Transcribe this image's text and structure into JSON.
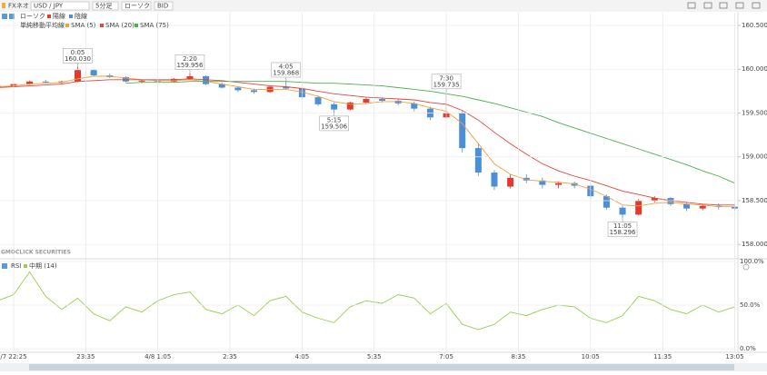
{
  "toolbar": {
    "app": "FXネオ",
    "pair": "USD / JPY",
    "interval": "5分足",
    "chart_kind": "ローソク",
    "price_side": "BID"
  },
  "brand": "GMOCLICK SECURITIES",
  "chart_data": [
    {
      "type": "candlestick",
      "candle_legend": {
        "title": "ローソク",
        "up": {
          "name": "陽線",
          "color": "#e23a2e"
        },
        "down": {
          "name": "陰線",
          "color": "#4a8fd8"
        }
      },
      "sma_title": "単純移動平均線",
      "xlim": [
        0.15,
        46.2
      ],
      "xticks": [
        {
          "value": 1,
          "label": "/7 22:25"
        },
        {
          "value": 5.5,
          "label": "23:35"
        },
        {
          "value": 10,
          "label": "4/8 1:05"
        },
        {
          "value": 14.5,
          "label": "2:35"
        },
        {
          "value": 19,
          "label": "4:05"
        },
        {
          "value": 23.5,
          "label": "5:35"
        },
        {
          "value": 28,
          "label": "7:05"
        },
        {
          "value": 32.5,
          "label": "8:35"
        },
        {
          "value": 37,
          "label": "10:05"
        },
        {
          "value": 41.5,
          "label": "11:35"
        },
        {
          "value": 46,
          "label": "13:05"
        }
      ],
      "ylim": [
        157.94,
        160.645
      ],
      "yticks": [
        {
          "value": 158,
          "label": "158.000"
        },
        {
          "value": 158.5,
          "label": "158.500"
        },
        {
          "value": 159,
          "label": "159.000"
        },
        {
          "value": 159.5,
          "label": "159.500"
        },
        {
          "value": 160,
          "label": "160.000"
        },
        {
          "value": 160.5,
          "label": "160.500"
        }
      ],
      "grid": true,
      "candles": {
        "open": [
          159.79,
          159.81,
          159.83,
          159.86,
          159.85,
          159.86,
          159.99,
          159.93,
          159.91,
          159.86,
          159.87,
          159.86,
          159.89,
          159.92,
          159.83,
          159.79,
          159.76,
          159.74,
          159.8,
          159.78,
          159.68,
          159.6,
          159.54,
          159.62,
          159.66,
          159.64,
          159.61,
          159.55,
          159.45,
          159.5,
          159.1,
          158.82,
          158.66,
          158.76,
          158.73,
          158.68,
          158.7,
          158.67,
          158.55,
          158.42,
          158.34,
          158.5,
          158.53,
          158.46,
          158.41,
          158.44,
          158.43
        ],
        "high": [
          159.82,
          159.84,
          159.87,
          159.88,
          159.87,
          160.03,
          160.0,
          159.95,
          159.92,
          159.88,
          159.89,
          159.9,
          159.956,
          159.93,
          159.85,
          159.8,
          159.78,
          159.81,
          159.868,
          159.79,
          159.7,
          159.62,
          159.63,
          159.68,
          159.68,
          159.66,
          159.63,
          159.57,
          159.735,
          159.52,
          159.15,
          158.85,
          158.8,
          158.8,
          158.76,
          158.72,
          158.72,
          158.68,
          158.57,
          158.44,
          158.52,
          158.55,
          158.54,
          158.48,
          158.46,
          158.47,
          158.46
        ],
        "low": [
          159.78,
          159.8,
          159.82,
          159.84,
          159.83,
          159.85,
          159.92,
          159.9,
          159.85,
          159.84,
          159.85,
          159.85,
          159.88,
          159.82,
          159.78,
          159.74,
          159.72,
          159.73,
          159.77,
          159.66,
          159.58,
          159.506,
          159.53,
          159.6,
          159.62,
          159.59,
          159.52,
          159.42,
          159.44,
          159.05,
          158.78,
          158.62,
          158.64,
          158.7,
          158.64,
          158.64,
          158.64,
          158.52,
          158.4,
          158.296,
          158.33,
          158.48,
          158.44,
          158.38,
          158.39,
          158.4,
          158.39
        ],
        "close": [
          159.81,
          159.83,
          159.86,
          159.85,
          159.86,
          159.99,
          159.93,
          159.91,
          159.86,
          159.87,
          159.86,
          159.89,
          159.92,
          159.83,
          159.79,
          159.76,
          159.74,
          159.8,
          159.78,
          159.68,
          159.6,
          159.54,
          159.62,
          159.66,
          159.64,
          159.61,
          159.55,
          159.45,
          159.5,
          159.1,
          158.82,
          158.66,
          158.76,
          158.73,
          158.68,
          158.7,
          158.67,
          158.55,
          158.42,
          158.34,
          158.5,
          158.53,
          158.46,
          158.41,
          158.44,
          158.43,
          158.41
        ]
      },
      "series": [
        {
          "name": "SMA (5)",
          "color": "#f0a040",
          "values": [
            159.8,
            159.81,
            159.83,
            159.84,
            159.85,
            159.89,
            159.92,
            159.92,
            159.9,
            159.88,
            159.87,
            159.87,
            159.88,
            159.86,
            159.83,
            159.8,
            159.77,
            159.77,
            159.77,
            159.74,
            159.69,
            159.63,
            159.6,
            159.61,
            159.63,
            159.63,
            159.61,
            159.56,
            159.52,
            159.38,
            159.15,
            158.92,
            158.8,
            158.74,
            158.72,
            158.71,
            158.69,
            158.63,
            158.55,
            158.45,
            158.44,
            158.47,
            158.48,
            158.46,
            158.45,
            158.43,
            158.43
          ]
        },
        {
          "name": "SMA (20)",
          "color": "#e0473a",
          "values": [
            159.79,
            159.8,
            159.81,
            159.82,
            159.83,
            159.86,
            159.87,
            159.88,
            159.88,
            159.88,
            159.88,
            159.88,
            159.89,
            159.88,
            159.87,
            159.85,
            159.83,
            159.81,
            159.8,
            159.78,
            159.75,
            159.72,
            159.7,
            159.68,
            159.67,
            159.66,
            159.65,
            159.62,
            159.6,
            159.53,
            159.42,
            159.28,
            159.15,
            159.03,
            158.92,
            158.84,
            158.78,
            158.73,
            158.67,
            158.61,
            158.57,
            158.53,
            158.5,
            158.48,
            158.46,
            158.45,
            158.45
          ]
        },
        {
          "name": "SMA (75)",
          "color": "#4caf50",
          "values": [
            null,
            null,
            null,
            null,
            null,
            null,
            null,
            null,
            159.84,
            159.85,
            159.85,
            159.85,
            159.86,
            159.86,
            159.86,
            159.86,
            159.86,
            159.86,
            159.86,
            159.85,
            159.84,
            159.84,
            159.83,
            159.82,
            159.81,
            159.79,
            159.77,
            159.75,
            159.72,
            159.69,
            159.65,
            159.61,
            159.56,
            159.51,
            159.46,
            159.39,
            159.33,
            159.27,
            159.21,
            159.15,
            159.09,
            159.03,
            158.97,
            158.91,
            158.84,
            158.78,
            158.7
          ]
        }
      ],
      "annotations": [
        {
          "time": "0:05",
          "value": 160.03,
          "label": "160.030"
        },
        {
          "time": "2:20",
          "value": 159.956,
          "label": "159.956"
        },
        {
          "time": "4:05",
          "value": 159.868,
          "label": "159.868"
        },
        {
          "time": "5:15",
          "value": 159.506,
          "label": "159.506"
        },
        {
          "time": "7:30",
          "value": 159.735,
          "label": "159.735"
        },
        {
          "time": "11:05",
          "value": 158.296,
          "label": "158.296"
        }
      ]
    },
    {
      "type": "line",
      "title": "RSI",
      "series": [
        {
          "name": "中期 (14)",
          "color": "#9acd50",
          "values": [
            55,
            62,
            88,
            60,
            45,
            58,
            40,
            32,
            48,
            42,
            55,
            62,
            65,
            45,
            40,
            50,
            38,
            55,
            60,
            42,
            35,
            30,
            48,
            55,
            52,
            62,
            58,
            40,
            52,
            28,
            22,
            28,
            42,
            38,
            45,
            50,
            48,
            35,
            30,
            38,
            60,
            55,
            45,
            40,
            50,
            42,
            48
          ]
        }
      ],
      "ylim": [
        -4,
        103
      ],
      "yticks": [
        {
          "value": 0,
          "label": "0.0%"
        },
        {
          "value": 50,
          "label": "50.0%"
        },
        {
          "value": 100,
          "label": "100.0%"
        }
      ]
    }
  ]
}
